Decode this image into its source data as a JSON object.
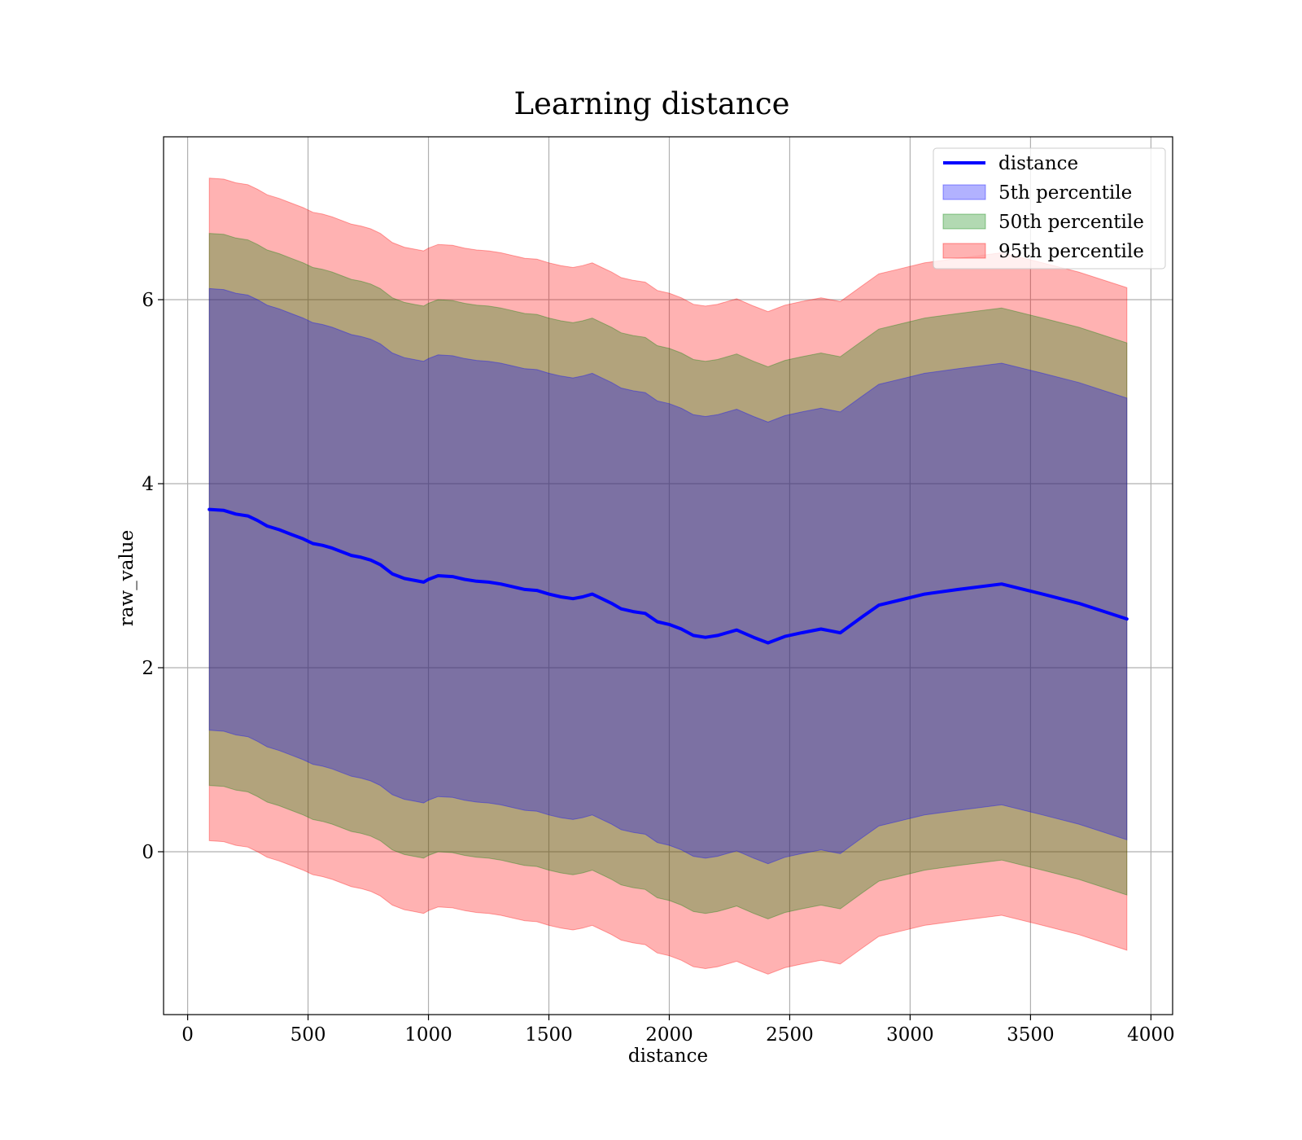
{
  "chart_data": {
    "type": "line",
    "title": "Learning distance",
    "xlabel": "distance",
    "ylabel": "raw_value",
    "xlim": [
      -100,
      4090
    ],
    "ylim": [
      -1.77,
      7.77
    ],
    "xticks": [
      0,
      500,
      1000,
      1500,
      2000,
      2500,
      3000,
      3500,
      4000
    ],
    "yticks": [
      0,
      2,
      4,
      6
    ],
    "grid": true,
    "legend_placement": "top-right",
    "colors": {
      "line": "#0000ff",
      "band_5th": "#0000ff",
      "band_50th": "#008000",
      "band_95th": "#ff0000",
      "overlap": "#a27279"
    },
    "legend": [
      {
        "label": "distance",
        "kind": "line",
        "color": "#0000ff"
      },
      {
        "label": "5th percentile",
        "kind": "patch",
        "color": "#0000ff"
      },
      {
        "label": "50th percentile",
        "kind": "patch",
        "color": "#008000"
      },
      {
        "label": "95th percentile",
        "kind": "patch",
        "color": "#ff0000"
      }
    ],
    "x": [
      90,
      150,
      200,
      250,
      290,
      330,
      380,
      430,
      480,
      520,
      560,
      600,
      640,
      680,
      720,
      760,
      800,
      850,
      900,
      940,
      980,
      1000,
      1040,
      1100,
      1150,
      1200,
      1250,
      1300,
      1350,
      1400,
      1450,
      1500,
      1550,
      1600,
      1640,
      1680,
      1720,
      1760,
      1800,
      1850,
      1900,
      1950,
      2000,
      2050,
      2100,
      2150,
      2200,
      2280,
      2350,
      2410,
      2480,
      2550,
      2630,
      2710,
      2800,
      2870,
      2950,
      3060,
      3200,
      3380,
      3550,
      3700,
      3900
    ],
    "series": [
      {
        "name": "distance",
        "values": [
          3.72,
          3.71,
          3.67,
          3.65,
          3.6,
          3.54,
          3.5,
          3.45,
          3.4,
          3.35,
          3.33,
          3.3,
          3.26,
          3.22,
          3.2,
          3.17,
          3.12,
          3.02,
          2.97,
          2.95,
          2.93,
          2.96,
          3.0,
          2.99,
          2.96,
          2.94,
          2.93,
          2.91,
          2.88,
          2.85,
          2.84,
          2.8,
          2.77,
          2.75,
          2.77,
          2.8,
          2.75,
          2.7,
          2.64,
          2.61,
          2.59,
          2.5,
          2.47,
          2.42,
          2.35,
          2.33,
          2.35,
          2.41,
          2.33,
          2.27,
          2.34,
          2.38,
          2.42,
          2.38,
          2.55,
          2.68,
          2.73,
          2.8,
          2.85,
          2.91,
          2.8,
          2.7,
          2.53
        ]
      }
    ],
    "bands": [
      {
        "name": "5th percentile",
        "half_width": 2.4
      },
      {
        "name": "50th percentile",
        "half_width": 3.0
      },
      {
        "name": "95th percentile",
        "half_width": 3.6
      }
    ]
  }
}
